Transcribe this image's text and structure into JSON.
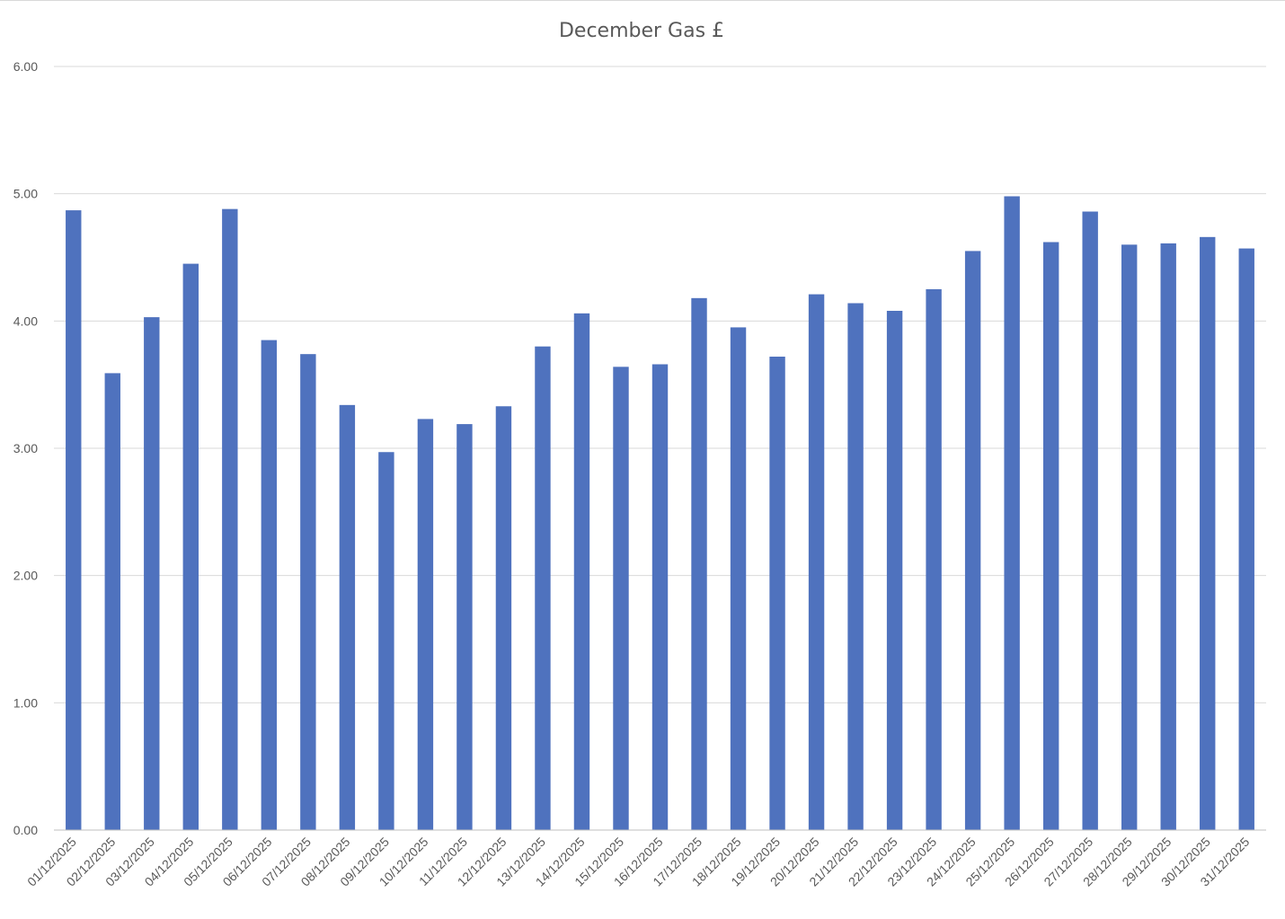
{
  "chart_data": {
    "type": "bar",
    "title": "December Gas £",
    "xlabel": "",
    "ylabel": "",
    "ylim": [
      0,
      6
    ],
    "y_ticks": [
      "0.00",
      "1.00",
      "2.00",
      "3.00",
      "4.00",
      "5.00",
      "6.00"
    ],
    "grid": true,
    "legend": "none",
    "bar_color": "#4f72be",
    "categories": [
      "01/12/2025",
      "02/12/2025",
      "03/12/2025",
      "04/12/2025",
      "05/12/2025",
      "06/12/2025",
      "07/12/2025",
      "08/12/2025",
      "09/12/2025",
      "10/12/2025",
      "11/12/2025",
      "12/12/2025",
      "13/12/2025",
      "14/12/2025",
      "15/12/2025",
      "16/12/2025",
      "17/12/2025",
      "18/12/2025",
      "19/12/2025",
      "20/12/2025",
      "21/12/2025",
      "22/12/2025",
      "23/12/2025",
      "24/12/2025",
      "25/12/2025",
      "26/12/2025",
      "27/12/2025",
      "28/12/2025",
      "29/12/2025",
      "30/12/2025",
      "31/12/2025"
    ],
    "values": [
      4.87,
      3.59,
      4.03,
      4.45,
      4.88,
      3.85,
      3.74,
      3.34,
      2.97,
      3.23,
      3.19,
      3.33,
      3.8,
      4.06,
      3.64,
      3.66,
      4.18,
      3.95,
      3.72,
      4.21,
      4.14,
      4.08,
      4.25,
      4.55,
      4.98,
      4.62,
      4.86,
      4.6,
      4.61,
      4.66,
      4.57
    ]
  }
}
